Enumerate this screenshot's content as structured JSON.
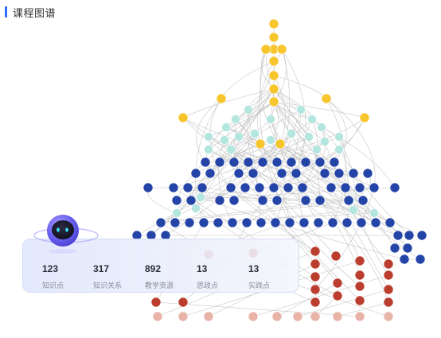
{
  "header": {
    "title": "课程图谱"
  },
  "colors": {
    "accent": "#2f6bff",
    "level_top": "#f7c52c",
    "level_concept": "#b4e6e0",
    "level_knowledge": "#2444a8",
    "level_practice": "#bb3d2e",
    "level_resource": "#e9b4a8",
    "edge": "#c6c6c6"
  },
  "stats": [
    {
      "value": "123",
      "label": "知识点"
    },
    {
      "value": "317",
      "label": "知识关系"
    },
    {
      "value": "892",
      "label": "教学资源"
    },
    {
      "value": "13",
      "label": "思政点"
    },
    {
      "value": "13",
      "label": "实践点"
    }
  ]
}
